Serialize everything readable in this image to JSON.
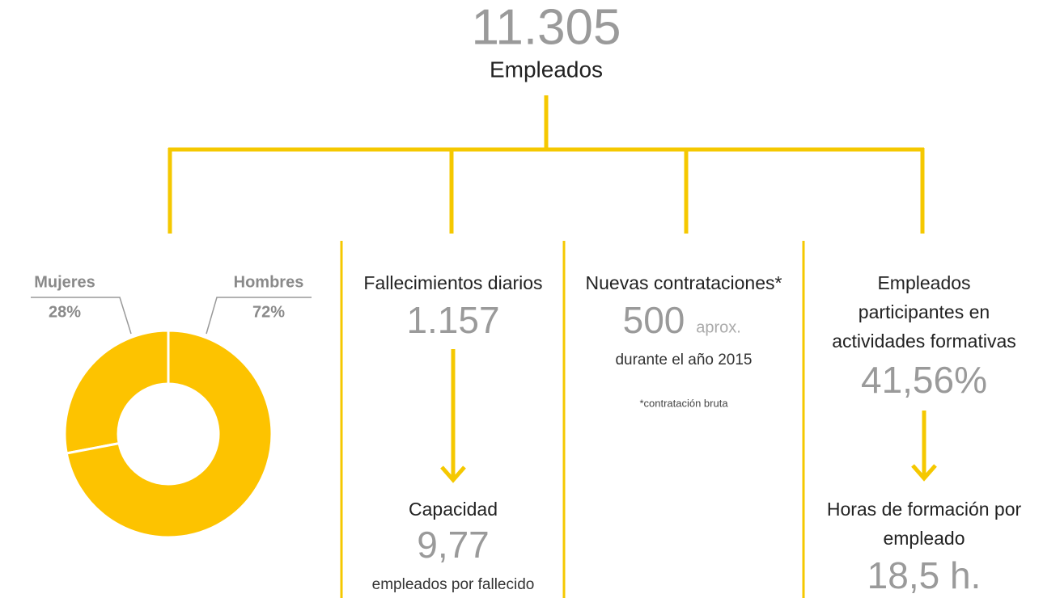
{
  "header": {
    "total": "11.305",
    "label": "Empleados"
  },
  "chart_data": {
    "type": "pie",
    "categories": [
      "Mujeres",
      "Hombres"
    ],
    "values": [
      28,
      72
    ],
    "value_labels": [
      "28%",
      "72%"
    ],
    "color": "#fdc300",
    "donut": true
  },
  "deaths": {
    "title": "Fallecimientos diarios",
    "value": "1.157",
    "capacity_title": "Capacidad",
    "capacity_value": "9,77",
    "capacity_note": "empleados por fallecido"
  },
  "hiring": {
    "title": "Nuevas contrataciones*",
    "value": "500",
    "unit": "aprox.",
    "note": "durante el año 2015",
    "footnote": "*contratación bruta"
  },
  "training": {
    "title_lines": [
      "Empleados",
      "participantes en",
      "actividades formativas"
    ],
    "value": "41,56%",
    "hours_title_lines": [
      "Horas de formación por",
      "empleado"
    ],
    "hours_value": "18,5 h."
  }
}
